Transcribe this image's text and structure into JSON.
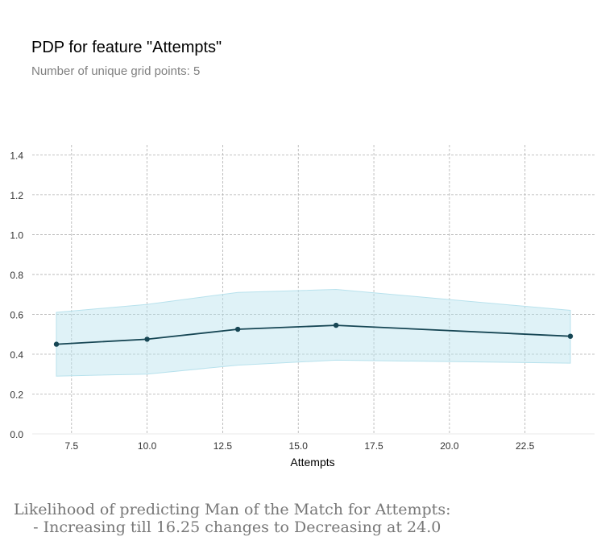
{
  "title": "PDP for feature \"Attempts\"",
  "subtitle": "Number of unique grid points: 5",
  "chart_data": {
    "type": "line",
    "xlabel": "Attempts",
    "ylabel": "",
    "xlim": [
      6.2,
      24.8
    ],
    "ylim": [
      0,
      1.45
    ],
    "x_ticks": [
      "7.5",
      "10.0",
      "12.5",
      "15.0",
      "17.5",
      "20.0",
      "22.5"
    ],
    "y_ticks": [
      "0.0",
      "0.2",
      "0.4",
      "0.6",
      "0.8",
      "1.0",
      "1.2",
      "1.4"
    ],
    "grid": true,
    "series": [
      {
        "x": [
          7,
          10,
          13,
          16.25,
          24
        ],
        "y": [
          0.45,
          0.475,
          0.525,
          0.545,
          0.49
        ],
        "upper": [
          0.61,
          0.65,
          0.71,
          0.725,
          0.62
        ],
        "lower": [
          0.29,
          0.3,
          0.345,
          0.37,
          0.355
        ],
        "color": "#164654",
        "band_color": "#b8e2ed"
      }
    ]
  },
  "caption": {
    "line1": "Likelihood of predicting Man of the Match for Attempts:",
    "line2": "    - Increasing till 16.25 changes to Decreasing at 24.0"
  }
}
